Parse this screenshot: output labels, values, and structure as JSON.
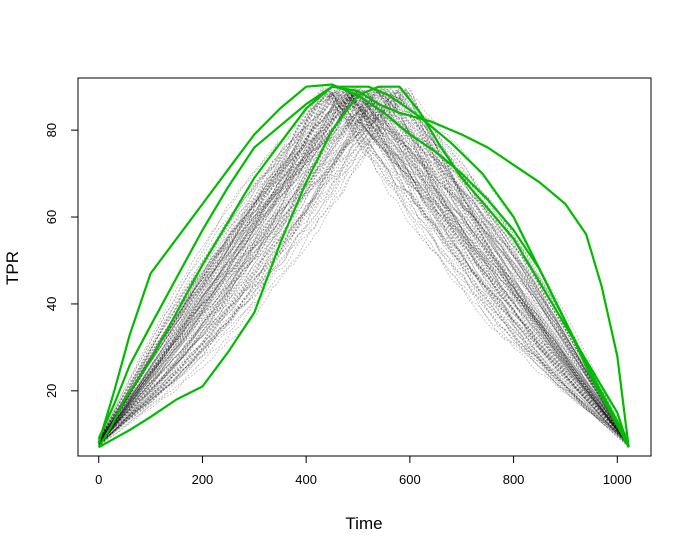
{
  "chart_data": {
    "type": "line",
    "title": "",
    "xlabel": "Time",
    "ylabel": "TPR",
    "xlim": [
      -40,
      1065
    ],
    "ylim": [
      5,
      92
    ],
    "x_ticks": [
      0,
      200,
      400,
      600,
      800,
      1000
    ],
    "y_ticks": [
      20,
      40,
      60,
      80
    ],
    "grid": false,
    "legend": "none",
    "background_series": {
      "description_count": 120,
      "color": "#000000",
      "style": "dotted",
      "peak_x_range": [
        430,
        600
      ],
      "peak_y": 90,
      "start_y_range": [
        7,
        9
      ],
      "end_x": 1022,
      "end_y_range": [
        7,
        9
      ]
    },
    "series": [
      {
        "color": "#00bb00",
        "points": [
          [
            0,
            8
          ],
          [
            30,
            20
          ],
          [
            60,
            33
          ],
          [
            100,
            47
          ],
          [
            150,
            55
          ],
          [
            200,
            63
          ],
          [
            250,
            71
          ],
          [
            300,
            79
          ],
          [
            350,
            85
          ],
          [
            400,
            90
          ],
          [
            450,
            90.5
          ],
          [
            500,
            88
          ],
          [
            550,
            84
          ],
          [
            600,
            79
          ],
          [
            650,
            75
          ],
          [
            700,
            70
          ],
          [
            750,
            64
          ],
          [
            800,
            57
          ],
          [
            850,
            48
          ],
          [
            900,
            36
          ],
          [
            950,
            23
          ],
          [
            1000,
            12
          ],
          [
            1022,
            7
          ]
        ]
      },
      {
        "color": "#00bb00",
        "points": [
          [
            0,
            9
          ],
          [
            30,
            17
          ],
          [
            60,
            26
          ],
          [
            100,
            35
          ],
          [
            150,
            46
          ],
          [
            200,
            57
          ],
          [
            250,
            67
          ],
          [
            300,
            76
          ],
          [
            350,
            81
          ],
          [
            400,
            86
          ],
          [
            450,
            90
          ],
          [
            500,
            89
          ],
          [
            540,
            86
          ],
          [
            580,
            84
          ],
          [
            640,
            82
          ],
          [
            700,
            79
          ],
          [
            750,
            76
          ],
          [
            800,
            72
          ],
          [
            850,
            68
          ],
          [
            900,
            63
          ],
          [
            940,
            56
          ],
          [
            970,
            44
          ],
          [
            1000,
            28
          ],
          [
            1022,
            7
          ]
        ]
      },
      {
        "color": "#00bb00",
        "points": [
          [
            0,
            7
          ],
          [
            30,
            9
          ],
          [
            60,
            11
          ],
          [
            100,
            14
          ],
          [
            150,
            18
          ],
          [
            200,
            21
          ],
          [
            250,
            29
          ],
          [
            300,
            38
          ],
          [
            350,
            54
          ],
          [
            400,
            68
          ],
          [
            450,
            80
          ],
          [
            500,
            88
          ],
          [
            540,
            90
          ],
          [
            580,
            90
          ],
          [
            620,
            84
          ],
          [
            660,
            76
          ],
          [
            700,
            69
          ],
          [
            750,
            62
          ],
          [
            800,
            55
          ],
          [
            850,
            45
          ],
          [
            900,
            35
          ],
          [
            950,
            25
          ],
          [
            1000,
            15
          ],
          [
            1022,
            7
          ]
        ]
      },
      {
        "color": "#00bb00",
        "points": [
          [
            0,
            7
          ],
          [
            25,
            12
          ],
          [
            50,
            18
          ],
          [
            100,
            27
          ],
          [
            150,
            38
          ],
          [
            200,
            49
          ],
          [
            250,
            59
          ],
          [
            300,
            69
          ],
          [
            350,
            77
          ],
          [
            400,
            85
          ],
          [
            450,
            90
          ],
          [
            490,
            90
          ],
          [
            520,
            90
          ],
          [
            560,
            88
          ],
          [
            620,
            83
          ],
          [
            680,
            77
          ],
          [
            740,
            70
          ],
          [
            800,
            60
          ],
          [
            850,
            48
          ],
          [
            900,
            36
          ],
          [
            950,
            24
          ],
          [
            1000,
            13
          ],
          [
            1022,
            7
          ]
        ]
      }
    ]
  }
}
